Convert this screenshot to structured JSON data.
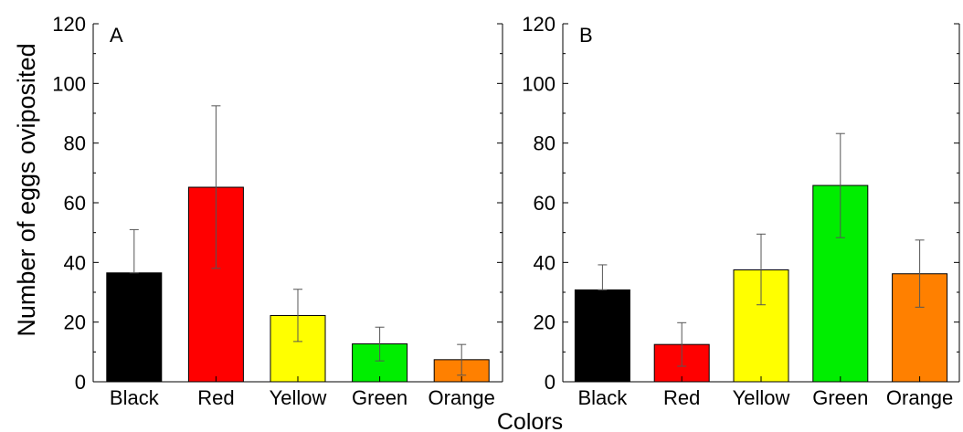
{
  "figure": {
    "ylabel": "Number of eggs oviposited",
    "xlabel": "Colors"
  },
  "chart_data": [
    {
      "type": "bar",
      "panel_label": "A",
      "categories": [
        "Black",
        "Red",
        "Yellow",
        "Green",
        "Orange"
      ],
      "values": [
        36.5,
        65.2,
        22.2,
        12.7,
        7.4
      ],
      "error_upper": [
        51.0,
        92.5,
        31.0,
        18.3,
        12.5
      ],
      "error_lower": [
        36.5,
        38.0,
        13.5,
        7.0,
        2.2
      ],
      "colors": [
        "#000000",
        "#ff0000",
        "#ffff00",
        "#00ee00",
        "#ff8000"
      ],
      "ylim": [
        0,
        120
      ],
      "yticks": [
        0,
        20,
        40,
        60,
        80,
        100,
        120
      ],
      "ylabel": "Number of eggs oviposited",
      "xlabel": "Colors"
    },
    {
      "type": "bar",
      "panel_label": "B",
      "categories": [
        "Black",
        "Red",
        "Yellow",
        "Green",
        "Orange"
      ],
      "values": [
        30.8,
        12.5,
        37.5,
        65.8,
        36.2
      ],
      "error_upper": [
        39.2,
        19.8,
        49.5,
        83.2,
        47.5
      ],
      "error_lower": [
        30.8,
        5.2,
        25.8,
        48.3,
        25.0
      ],
      "colors": [
        "#000000",
        "#ff0000",
        "#ffff00",
        "#00ee00",
        "#ff8000"
      ],
      "ylim": [
        0,
        120
      ],
      "yticks": [
        0,
        20,
        40,
        60,
        80,
        100,
        120
      ],
      "xlabel": "Colors"
    }
  ]
}
